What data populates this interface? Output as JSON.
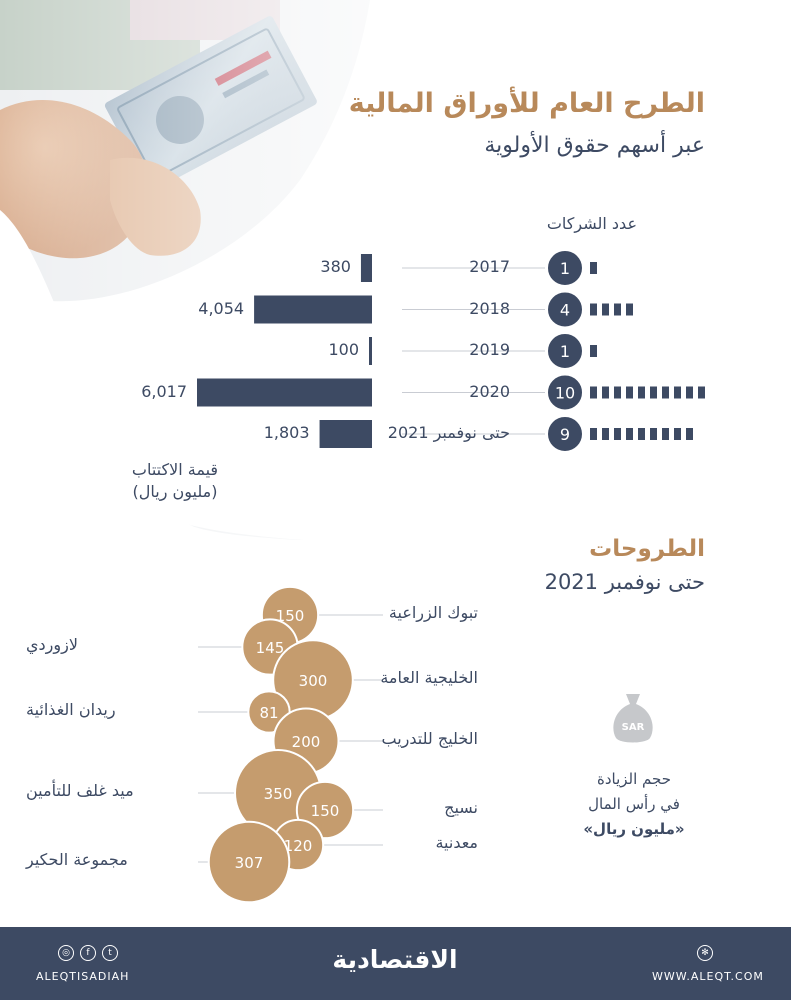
{
  "title": "الطرح العام للأوراق المالية",
  "subtitle": "عبر أسهم حقوق الأولوية",
  "colors": {
    "navy": "#3d4a63",
    "gold": "#c59c6e",
    "gold_text": "#b8895a"
  },
  "chart_data": [
    {
      "type": "bar",
      "title": "الطرح العام للأوراق المالية",
      "subtitle": "عبر أسهم حقوق الأولوية",
      "categories": [
        "2017",
        "2018",
        "2019",
        "2020",
        "حتى نوفمبر 2021"
      ],
      "value_labels": [
        "380",
        "4,054",
        "100",
        "6,017",
        "1,803"
      ],
      "series": [
        {
          "name": "قيمة الاكتتاب",
          "values": [
            380,
            4054,
            100,
            6017,
            1803
          ]
        },
        {
          "name": "عدد الشركات",
          "values": [
            1,
            4,
            1,
            10,
            9
          ]
        }
      ],
      "value_axis_label": "قيمة الاكتتاب",
      "value_axis_unit": "(مليون ريال)",
      "count_label": "عدد الشركات",
      "grid": false
    },
    {
      "type": "bubble",
      "title": "الطروحات",
      "subtitle": "حتى نوفمبر 2021",
      "categories": [
        "تبوك الزراعية",
        "لازوردي",
        "الخليجية العامة",
        "ريدان الغذائية",
        "الخليج للتدريب",
        "ميد غلف للتأمين",
        "نسيج",
        "معدنية",
        "مجموعة الحكير"
      ],
      "values": [
        150,
        145,
        300,
        81,
        200,
        350,
        150,
        120,
        307
      ],
      "legend": {
        "line1": "حجم الزيادة",
        "line2": "في رأس المال",
        "line3": "«مليون ريال»",
        "icon_text": "SAR"
      }
    }
  ],
  "footer": {
    "brand": "الاقتصادية",
    "handle": "ALEQTISADIAH",
    "website": "WWW.ALEQT.COM",
    "social_icons": [
      "instagram-icon",
      "facebook-icon",
      "twitter-icon"
    ]
  }
}
